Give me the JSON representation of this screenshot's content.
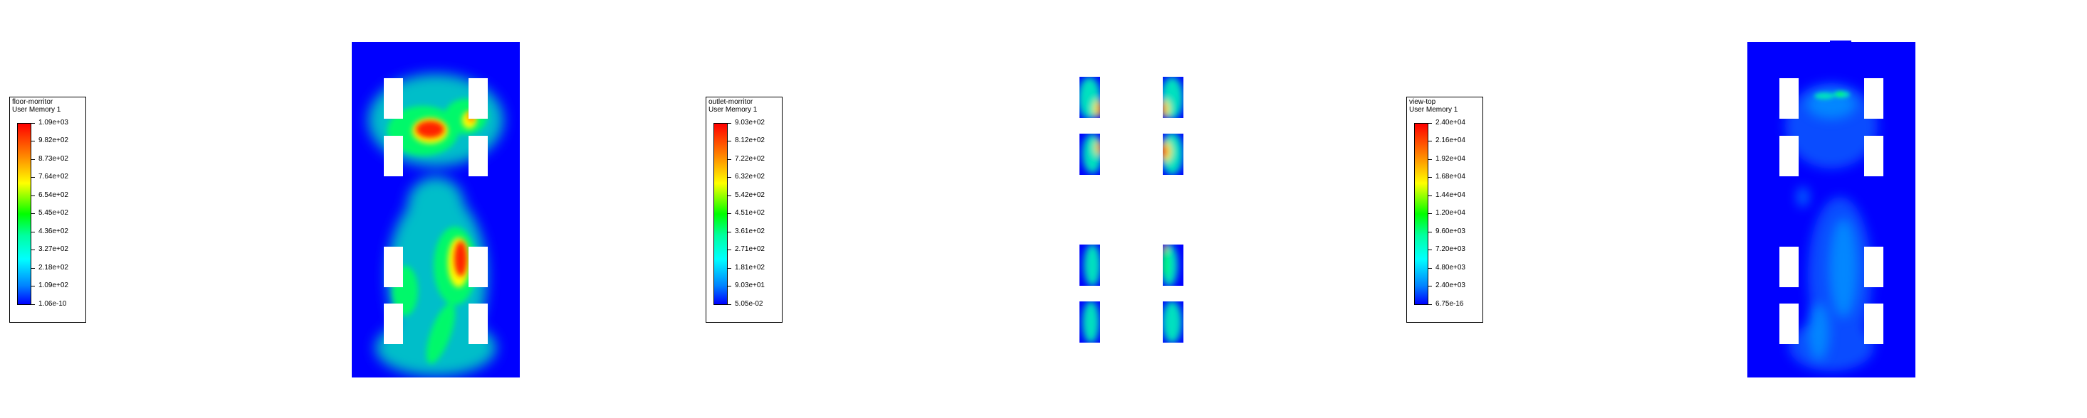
{
  "colors": {
    "background": "#ffffff",
    "field_base": "#0000ff",
    "hot": "#ff0000",
    "cutout": "#ffffff"
  },
  "panels": [
    {
      "legend": {
        "title": "floor-morritor",
        "subtitle": "User Memory 1",
        "labels": [
          "1.09e+03",
          "9.82e+02",
          "8.73e+02",
          "7.64e+02",
          "6.54e+02",
          "5.45e+02",
          "4.36e+02",
          "3.27e+02",
          "2.18e+02",
          "1.09e+02",
          "1.06e-10"
        ]
      }
    },
    {
      "legend": {
        "title": "outlet-morritor",
        "subtitle": "User Memory 1",
        "labels": [
          "9.03e+02",
          "8.12e+02",
          "7.22e+02",
          "6.32e+02",
          "5.42e+02",
          "4.51e+02",
          "3.61e+02",
          "2.71e+02",
          "1.81e+02",
          "9.03e+01",
          "5.05e-02"
        ]
      }
    },
    {
      "legend": {
        "title": "view-top",
        "subtitle": "User Memory 1",
        "labels": [
          "2.40e+04",
          "2.16e+04",
          "1.92e+04",
          "1.68e+04",
          "1.44e+04",
          "1.20e+04",
          "9.60e+03",
          "7.20e+03",
          "4.80e+03",
          "2.40e+03",
          "6.75e-16"
        ]
      }
    }
  ]
}
